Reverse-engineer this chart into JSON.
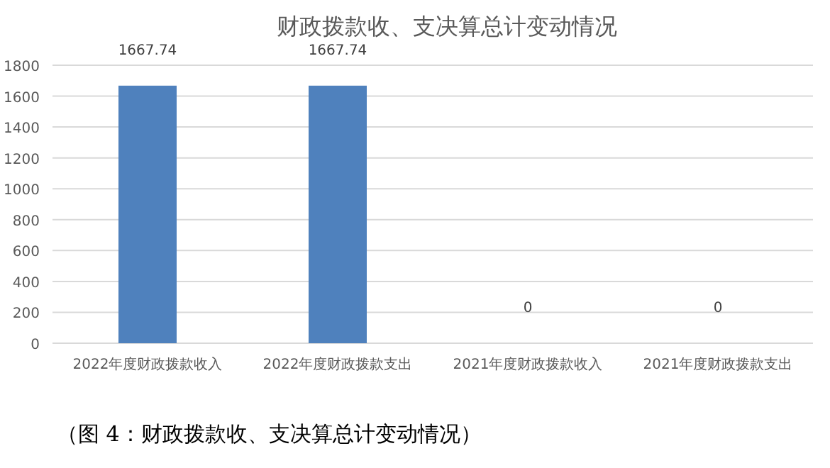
{
  "chart_data": {
    "type": "bar",
    "title": "财政拨款收、支决算总计变动情况",
    "categories": [
      "2022年度财政拨款收入",
      "2022年度财政拨款支出",
      "2021年度财政拨款收入",
      "2021年度财政拨款支出"
    ],
    "values": [
      1667.74,
      1667.74,
      0,
      0
    ],
    "color": "#4f81bd",
    "ylim": [
      0,
      1800
    ],
    "yticks": [
      0,
      200,
      400,
      600,
      800,
      1000,
      1200,
      1400,
      1600,
      1800
    ],
    "grid": "y",
    "data_labels": true,
    "annotations": [
      "（图 4：财政拨款收、支决算总计变动情况）"
    ]
  }
}
